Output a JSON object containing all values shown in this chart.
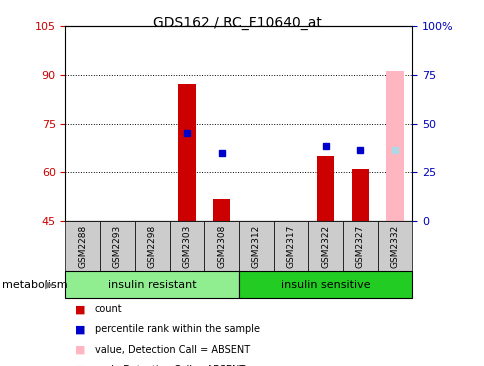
{
  "title": "GDS162 / RC_F10640_at",
  "samples": [
    "GSM2288",
    "GSM2293",
    "GSM2298",
    "GSM2303",
    "GSM2308",
    "GSM2312",
    "GSM2317",
    "GSM2322",
    "GSM2327",
    "GSM2332"
  ],
  "ylim_left": [
    45,
    105
  ],
  "ylim_right": [
    0,
    100
  ],
  "yticks_left": [
    45,
    60,
    75,
    90,
    105
  ],
  "yticks_right": [
    0,
    25,
    50,
    75,
    100
  ],
  "ytick_labels_right": [
    "0",
    "25",
    "50",
    "75",
    "100%"
  ],
  "red_bars": {
    "GSM2303": 87,
    "GSM2308": 52,
    "GSM2322": 65,
    "GSM2327": 61
  },
  "blue_squares": {
    "GSM2303": 72,
    "GSM2308": 66,
    "GSM2322": 68,
    "GSM2327": 67
  },
  "pink_bar": {
    "GSM2332": 91
  },
  "light_blue_square": {
    "GSM2332": 67
  },
  "group1": {
    "label": "insulin resistant",
    "color": "#90EE90",
    "start": 0,
    "end": 4
  },
  "group2": {
    "label": "insulin sensitive",
    "color": "#22CC22",
    "start": 5,
    "end": 9
  },
  "group_label": "metabolism",
  "legend": [
    {
      "label": "count",
      "color": "#CC0000"
    },
    {
      "label": "percentile rank within the sample",
      "color": "#0000CC"
    },
    {
      "label": "value, Detection Call = ABSENT",
      "color": "#FFB6C1"
    },
    {
      "label": "rank, Detection Call = ABSENT",
      "color": "#ADD8E6"
    }
  ],
  "bar_width": 0.5,
  "red_color": "#CC0000",
  "blue_color": "#0000CC",
  "pink_color": "#FFB6C1",
  "light_blue_color": "#ADD8E6",
  "tick_color_left": "#CC0000",
  "tick_color_right": "#0000BB",
  "sample_box_color": "#CCCCCC"
}
